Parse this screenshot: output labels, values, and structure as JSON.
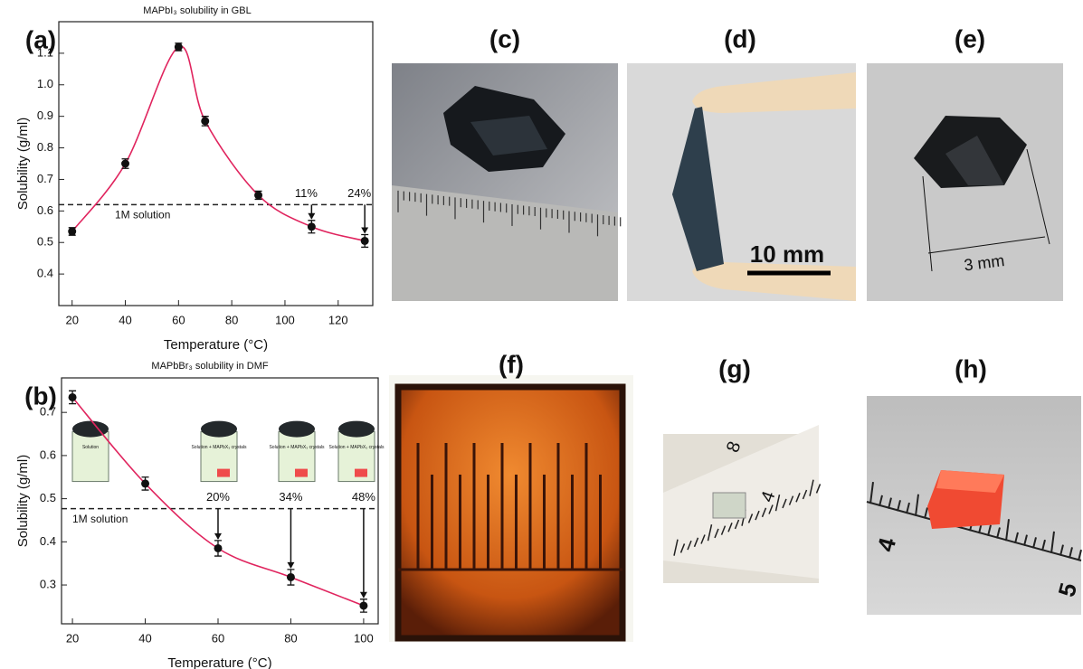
{
  "chart_data": [
    {
      "type": "scatter",
      "panel_label": "(a)",
      "title": "MAPbI₃ solubility in GBL",
      "x_label": "Temperature (°C)",
      "y_label": "Solubility (g/ml)",
      "x": [
        20,
        40,
        60,
        70,
        90,
        110,
        130
      ],
      "series": [
        {
          "color": "#111111",
          "line_color": "#e0245e",
          "values": [
            0.535,
            0.75,
            1.12,
            0.885,
            0.65,
            0.55,
            0.505
          ],
          "errors": [
            0.012,
            0.015,
            0.012,
            0.015,
            0.013,
            0.02,
            0.02
          ]
        }
      ],
      "xlim": [
        15,
        133
      ],
      "xticks": [
        20,
        40,
        60,
        80,
        100,
        120
      ],
      "ylim": [
        0.3,
        1.2
      ],
      "yticks": [
        0.4,
        0.5,
        0.6,
        0.7,
        0.8,
        0.9,
        {
          "value": 1,
          "label": "1.0"
        },
        1.1
      ],
      "reference_line": {
        "value": 0.62,
        "label": "1M solution"
      },
      "annotations": [
        {
          "x": 110,
          "text": "11%"
        },
        {
          "x": 130,
          "text": "24%"
        }
      ]
    },
    {
      "type": "scatter",
      "panel_label": "(b)",
      "title": "MAPbBr₃ solubility in DMF",
      "x_label": "Temperature (°C)",
      "y_label": "Solubility (g/ml)",
      "x": [
        20,
        40,
        60,
        80,
        100
      ],
      "series": [
        {
          "color": "#111111",
          "line_color": "#e0245e",
          "values": [
            0.735,
            0.535,
            0.385,
            0.318,
            0.252
          ],
          "errors": [
            0.015,
            0.015,
            0.018,
            0.018,
            0.015
          ]
        }
      ],
      "xlim": [
        17,
        104
      ],
      "xticks": [
        20,
        40,
        60,
        80,
        100
      ],
      "ylim": [
        0.21,
        0.78
      ],
      "yticks": [
        0.3,
        0.4,
        0.5,
        0.6,
        0.7
      ],
      "reference_line": {
        "value": 0.477,
        "label": "1M solution"
      },
      "annotations": [
        {
          "x": 60,
          "text": "20%"
        },
        {
          "x": 80,
          "text": "34%"
        },
        {
          "x": 100,
          "text": "48%"
        }
      ],
      "vials": [
        "Solution",
        "Solution + MAPbX₃ crystals",
        "Solution + MAPbX₃ crystals",
        "Solution + MAPbX₃ crystals"
      ]
    }
  ],
  "photos": [
    {
      "label": "(c)"
    },
    {
      "label": "(d)",
      "scale_text": "10 mm"
    },
    {
      "label": "(e)",
      "scale_text": "3 mm"
    },
    {
      "label": "(f)"
    },
    {
      "label": "(g)",
      "ruler_marks": [
        "8",
        "4"
      ]
    },
    {
      "label": "(h)",
      "ruler_marks": [
        "4",
        "5"
      ]
    }
  ]
}
